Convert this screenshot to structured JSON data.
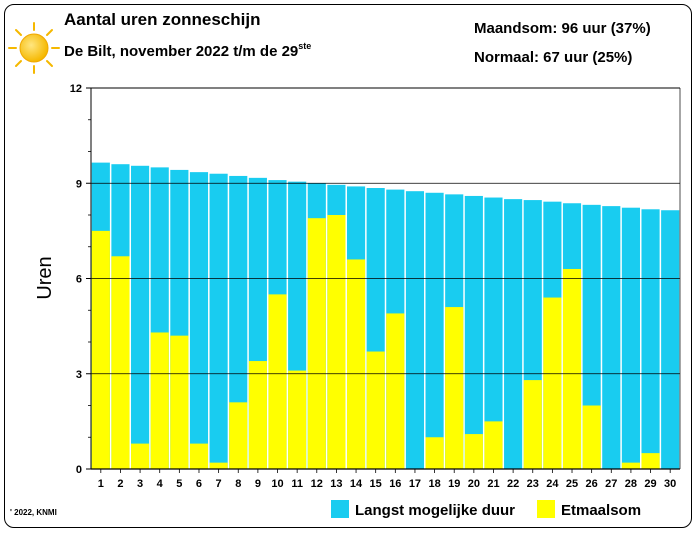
{
  "header": {
    "title": "Aantal uren zonneschijn",
    "subtitle_main": "De Bilt, november 2022 t/m de 29",
    "subtitle_sup": "ste",
    "month_sum": "Maandsom: 96 uur (37%)",
    "normal": "Normaal: 67 uur (25%)"
  },
  "credit": "' 2022, KNMI",
  "icons": {
    "sun": "sun-icon"
  },
  "colors": {
    "max_duration": "#19ccf0",
    "daily_sum": "#ffff00",
    "grid": "#000000"
  },
  "chart_data": {
    "type": "bar",
    "ylabel": "Uren",
    "xlabel": "",
    "ylim": [
      0,
      12
    ],
    "yticks": [
      0,
      3,
      6,
      9,
      12
    ],
    "grid": "horizontal",
    "legend_position": "bottom-right",
    "categories": [
      "1",
      "2",
      "3",
      "4",
      "5",
      "6",
      "7",
      "8",
      "9",
      "10",
      "11",
      "12",
      "13",
      "14",
      "15",
      "16",
      "17",
      "18",
      "19",
      "20",
      "21",
      "22",
      "23",
      "24",
      "25",
      "26",
      "27",
      "28",
      "29",
      "30"
    ],
    "series": [
      {
        "name": "Langst mogelijke duur",
        "color": "#19ccf0",
        "values": [
          9.65,
          9.6,
          9.55,
          9.5,
          9.42,
          9.35,
          9.3,
          9.23,
          9.17,
          9.1,
          9.05,
          9.0,
          8.95,
          8.9,
          8.85,
          8.8,
          8.75,
          8.7,
          8.65,
          8.6,
          8.55,
          8.5,
          8.47,
          8.42,
          8.37,
          8.32,
          8.28,
          8.23,
          8.18,
          8.15
        ]
      },
      {
        "name": "Etmaalsom",
        "color": "#ffff00",
        "values": [
          7.5,
          6.7,
          0.8,
          4.3,
          4.2,
          0.8,
          0.2,
          2.1,
          3.4,
          5.5,
          3.1,
          7.9,
          8.0,
          6.6,
          3.7,
          4.9,
          0.0,
          1.0,
          5.1,
          1.1,
          1.5,
          0.0,
          2.8,
          5.4,
          6.3,
          2.0,
          0.0,
          0.2,
          0.5,
          null
        ]
      }
    ]
  }
}
